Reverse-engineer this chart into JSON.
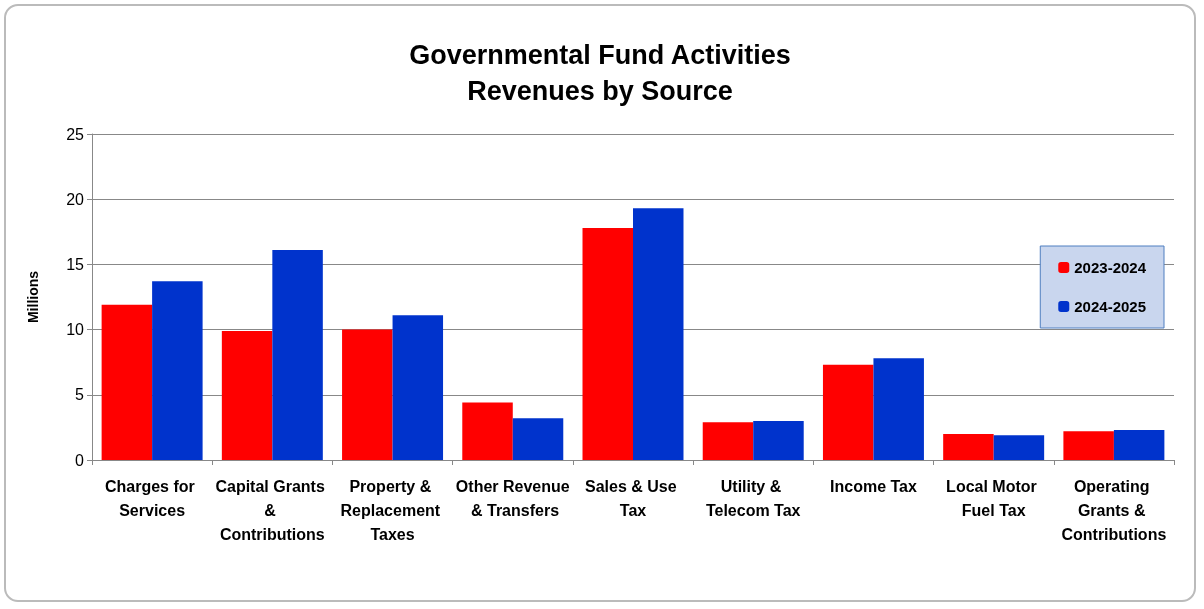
{
  "chart_data": {
    "type": "bar",
    "title": "Governmental Fund Activities\nRevenues by Source",
    "ylabel": "Millions",
    "categories": [
      "Charges for Services",
      "Capital Grants & Contributions",
      "Property & Replacement Taxes",
      "Other Revenue & Transfers",
      "Sales & Use Tax",
      "Utility & Telecom Tax",
      "Income Tax",
      "Local Motor Fuel Tax",
      "Operating Grants & Contributions"
    ],
    "series": [
      {
        "name": "2023-2024",
        "color": "#ff0000",
        "values": [
          11.9,
          9.9,
          10.0,
          4.4,
          17.8,
          2.9,
          7.3,
          2.0,
          2.2
        ]
      },
      {
        "name": "2024-2025",
        "color": "#0033cc",
        "values": [
          13.7,
          16.1,
          11.1,
          3.2,
          19.3,
          3.0,
          7.8,
          1.9,
          2.3
        ]
      }
    ],
    "ylim": [
      0,
      25
    ],
    "yticks": [
      0,
      5,
      10,
      15,
      20,
      25
    ],
    "grid": "y",
    "legend": "right"
  }
}
